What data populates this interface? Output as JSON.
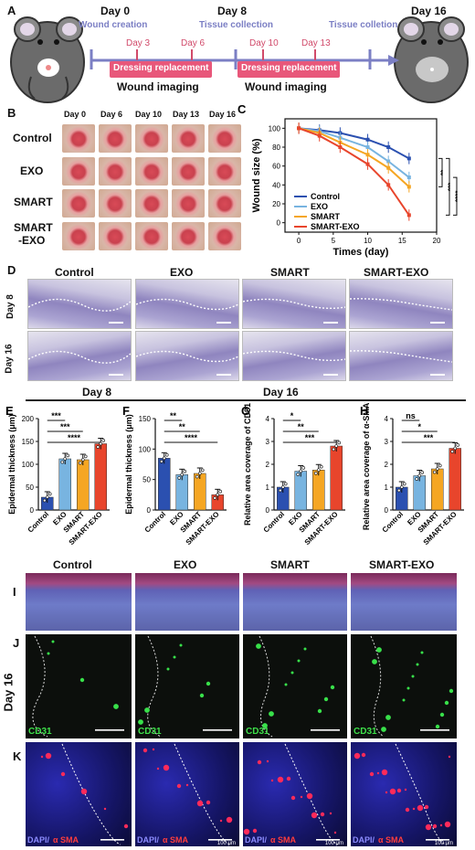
{
  "panel_a": {
    "letter": "A",
    "day0": "Day 0",
    "wound_creation": "Wound creation",
    "day8": "Day 8",
    "tissue_collection": "Tissue collection",
    "tissue_colletion": "Tissue colletion",
    "day16": "Day 16",
    "day3": "Day 3",
    "day6": "Day 6",
    "day10": "Day 10",
    "day13": "Day 13",
    "dressing1": "Dressing replacement",
    "dressing2": "Dressing replacement",
    "imaging1": "Wound imaging",
    "imaging2": "Wound imaging"
  },
  "panel_b": {
    "letter": "B",
    "days": [
      "Day 0",
      "Day 6",
      "Day 10",
      "Day 13",
      "Day 16"
    ],
    "rows": [
      "Control",
      "EXO",
      "SMART",
      "SMART",
      "-EXO"
    ]
  },
  "panel_d": {
    "letter": "D",
    "cols": [
      "Control",
      "EXO",
      "SMART",
      "SMART-EXO"
    ],
    "row1": "Day 8",
    "row2": "Day 16"
  },
  "section_day8": "Day 8",
  "section_day16": "Day 16",
  "panel_ijk": {
    "letter_i": "I",
    "letter_j": "J",
    "letter_k": "K",
    "cols": [
      "Control",
      "EXO",
      "SMART",
      "SMART-EXO"
    ],
    "side": "Day 16",
    "cd31": "CD31",
    "dapi": "DAPI/",
    "asma": "α SMA",
    "scale": "100 μm"
  },
  "colors": {
    "control": "#2b50b0",
    "exo": "#78b4e0",
    "smart": "#f5a623",
    "smart_exo": "#e8452c",
    "timeline": "#7b7fc4",
    "dressing_box": "#e8577a"
  },
  "chart_data": [
    {
      "panel": "C",
      "type": "line",
      "xlabel": "Times (day)",
      "ylabel": "Wound size (%)",
      "xlim": [
        -2,
        20
      ],
      "ylim": [
        -10,
        110
      ],
      "xticks": [
        0,
        5,
        10,
        15,
        20
      ],
      "yticks": [
        0,
        20,
        40,
        60,
        80,
        100
      ],
      "x": [
        0,
        3,
        6,
        10,
        13,
        16
      ],
      "series": [
        {
          "name": "Control",
          "color": "#2b50b0",
          "values": [
            100,
            98,
            95,
            88,
            80,
            68
          ]
        },
        {
          "name": "EXO",
          "color": "#78b4e0",
          "values": [
            100,
            97,
            90,
            80,
            65,
            48
          ]
        },
        {
          "name": "SMART",
          "color": "#f5a623",
          "values": [
            100,
            95,
            85,
            72,
            58,
            38
          ]
        },
        {
          "name": "SMART-EXO",
          "color": "#e8452c",
          "values": [
            100,
            92,
            80,
            62,
            40,
            8
          ]
        }
      ],
      "significance": [
        "**",
        "***",
        "****"
      ]
    },
    {
      "panel": "E",
      "type": "bar",
      "categories": [
        "Control",
        "EXO",
        "SMART",
        "SMART-EXO"
      ],
      "values": [
        28,
        112,
        110,
        145
      ],
      "ylabel": "Epidermal thickness (μm)",
      "ylim": [
        0,
        200
      ],
      "yticks": [
        0,
        50,
        100,
        150,
        200
      ],
      "significance": [
        "***",
        "***",
        "****"
      ]
    },
    {
      "panel": "F",
      "type": "bar",
      "categories": [
        "Control",
        "EXO",
        "SMART",
        "SMART-EXO"
      ],
      "values": [
        85,
        58,
        60,
        25
      ],
      "ylabel": "Epidermal thickness (μm)",
      "ylim": [
        0,
        150
      ],
      "yticks": [
        0,
        50,
        100,
        150
      ],
      "significance": [
        "**",
        "**",
        "****"
      ]
    },
    {
      "panel": "G",
      "type": "bar",
      "categories": [
        "Control",
        "EXO",
        "SMART",
        "SMART-EXO"
      ],
      "values": [
        1.0,
        1.7,
        1.75,
        2.8
      ],
      "ylabel": "Relative area coverage of CD31",
      "ylim": [
        0,
        4
      ],
      "yticks": [
        0,
        1,
        2,
        3,
        4
      ],
      "significance": [
        "*",
        "**",
        "***"
      ]
    },
    {
      "panel": "H",
      "type": "bar",
      "categories": [
        "Control",
        "EXO",
        "SMART",
        "SMART-EXO"
      ],
      "values": [
        1.0,
        1.5,
        1.8,
        2.7
      ],
      "ylabel": "Relative area coverage of α-SMA⁺",
      "ylim": [
        0,
        4
      ],
      "yticks": [
        0,
        1,
        2,
        3,
        4
      ],
      "significance": [
        "ns",
        "*",
        "***"
      ]
    }
  ]
}
